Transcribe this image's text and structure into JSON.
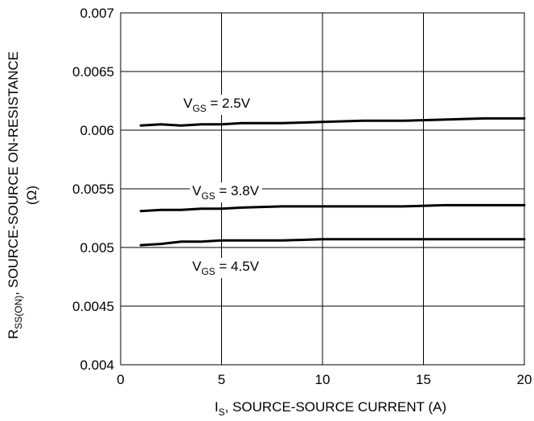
{
  "chart_data": {
    "type": "line",
    "xlabel": {
      "main": "I",
      "sub": "S",
      "rest": ", SOURCE-SOURCE CURRENT (A)"
    },
    "ylabel": {
      "line1": {
        "main": "R",
        "sub": "SS(ON)",
        "rest": ", SOURCE-SOURCE ON-RESISTANCE"
      },
      "line2": "(Ω)"
    },
    "xlim": [
      0,
      20
    ],
    "ylim": [
      0.004,
      0.007
    ],
    "x_ticks": [
      0,
      5,
      10,
      15,
      20
    ],
    "x_tick_labels": [
      "0",
      "5",
      "10",
      "15",
      "20"
    ],
    "y_ticks": [
      0.004,
      0.0045,
      0.005,
      0.0055,
      0.006,
      0.0065,
      0.007
    ],
    "y_tick_labels": [
      "0.004",
      "0.0045",
      "0.005",
      "0.0055",
      "0.006",
      "0.0065",
      "0.007"
    ],
    "grid": true,
    "series": [
      {
        "label": {
          "main": "V",
          "sub": "GS",
          "rest": " = 2.5V"
        },
        "x": [
          1,
          2,
          3,
          4,
          5,
          6,
          8,
          10,
          12,
          14,
          16,
          18,
          20
        ],
        "y": [
          0.00604,
          0.00605,
          0.00604,
          0.00605,
          0.00605,
          0.00606,
          0.00606,
          0.00607,
          0.00608,
          0.00608,
          0.00609,
          0.0061,
          0.0061
        ]
      },
      {
        "label": {
          "main": "V",
          "sub": "GS",
          "rest": " = 3.8V"
        },
        "x": [
          1,
          2,
          3,
          4,
          5,
          6,
          8,
          10,
          12,
          14,
          16,
          18,
          20
        ],
        "y": [
          0.00531,
          0.00532,
          0.00532,
          0.00533,
          0.00533,
          0.00534,
          0.00535,
          0.00535,
          0.00535,
          0.00535,
          0.00536,
          0.00536,
          0.00536
        ]
      },
      {
        "label": {
          "main": "V",
          "sub": "GS",
          "rest": " = 4.5V"
        },
        "x": [
          1,
          2,
          3,
          4,
          5,
          6,
          8,
          10,
          12,
          14,
          16,
          18,
          20
        ],
        "y": [
          0.00502,
          0.00503,
          0.00505,
          0.00505,
          0.00506,
          0.00506,
          0.00506,
          0.00507,
          0.00507,
          0.00507,
          0.00507,
          0.00507,
          0.00507
        ]
      }
    ],
    "colors": {
      "line": "#000000",
      "grid": "#000000",
      "background": "#ffffff"
    }
  }
}
